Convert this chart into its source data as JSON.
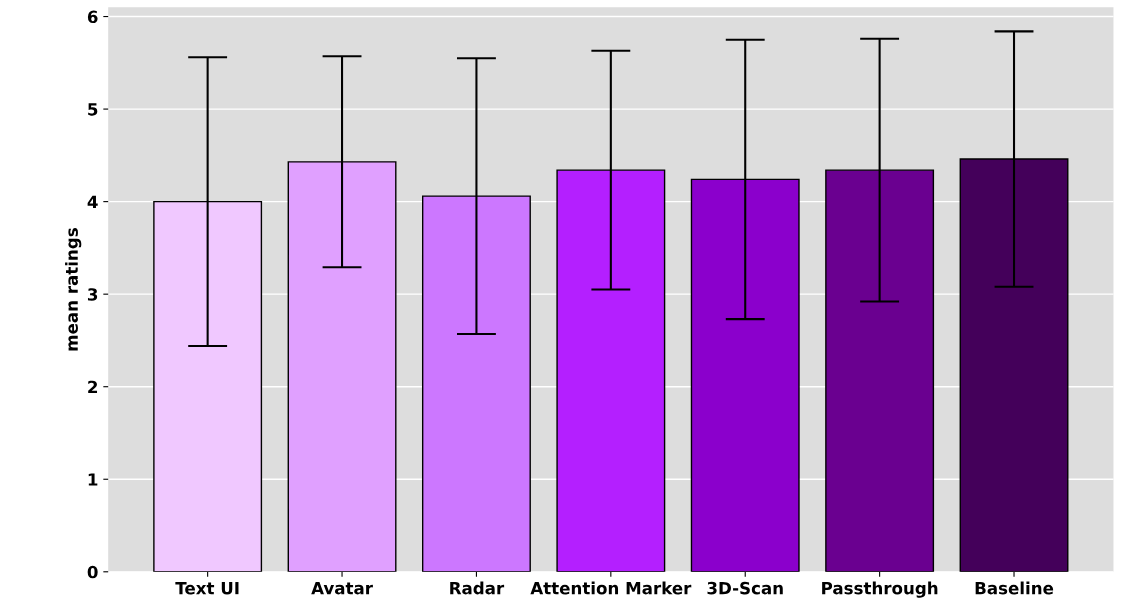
{
  "chart_data": {
    "type": "bar",
    "ylabel": "mean ratings",
    "categories": [
      "Text UI",
      "Avatar",
      "Radar",
      "Attention Marker",
      "3D-Scan",
      "Passthrough",
      "Baseline"
    ],
    "values": [
      4.0,
      4.43,
      4.06,
      4.34,
      4.24,
      4.34,
      4.46
    ],
    "errors": [
      1.56,
      1.14,
      1.49,
      1.29,
      1.51,
      1.42,
      1.38
    ],
    "colors": [
      "#f0c8ff",
      "#e0a0ff",
      "#cc77ff",
      "#b41fff",
      "#8b00cc",
      "#6a0090",
      "#44005a"
    ],
    "ylim": [
      0,
      6.1
    ],
    "yticks": [
      0,
      1,
      2,
      3,
      4,
      5,
      6
    ],
    "grid": "y"
  }
}
